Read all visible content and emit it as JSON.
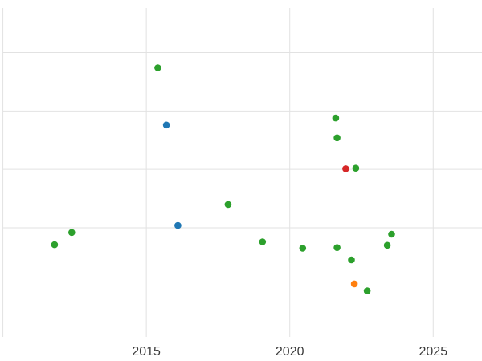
{
  "chart_data": {
    "type": "scatter",
    "title": "",
    "xlabel": "",
    "ylabel": "",
    "x_tick_labels": [
      "2015",
      "2020",
      "2025"
    ],
    "x_ticks": [
      2015,
      2020,
      2025
    ],
    "xlim": [
      2009.9,
      2026.7
    ],
    "ylim": [
      -1.28,
      4.9
    ],
    "y_axis_note": "y axis has no visible labels; y values expressed in gridline units (1 unit per horizontal gridline, gridlines at 1,2,3,4)",
    "grid": {
      "on": true,
      "x_gridline_years": [
        2010,
        2015,
        2020,
        2025
      ],
      "y_gridline_units": [
        1,
        2,
        3,
        4
      ],
      "color": "#e2e2e2"
    },
    "legend": "none",
    "marker_radius": 4.3,
    "tick_label_color": "#3b3b3b",
    "tick_font_size": 16,
    "series": [
      {
        "name": "green",
        "color": "#2ca02c",
        "points": [
          [
            2015.4,
            3.74
          ],
          [
            2021.6,
            2.88
          ],
          [
            2021.65,
            2.54
          ],
          [
            2022.3,
            2.02
          ],
          [
            2017.85,
            1.4
          ],
          [
            2012.4,
            0.92
          ],
          [
            2011.8,
            0.71
          ],
          [
            2019.05,
            0.76
          ],
          [
            2020.45,
            0.65
          ],
          [
            2021.65,
            0.66
          ],
          [
            2022.15,
            0.45
          ],
          [
            2023.55,
            0.89
          ],
          [
            2023.4,
            0.7
          ],
          [
            2022.7,
            -0.08
          ]
        ]
      },
      {
        "name": "blue",
        "color": "#1f77b4",
        "points": [
          [
            2015.7,
            2.76
          ],
          [
            2016.1,
            1.04
          ]
        ]
      },
      {
        "name": "red",
        "color": "#d62728",
        "points": [
          [
            2021.95,
            2.01
          ]
        ]
      },
      {
        "name": "orange",
        "color": "#ff7f0e",
        "points": [
          [
            2022.25,
            0.04
          ]
        ]
      }
    ]
  }
}
